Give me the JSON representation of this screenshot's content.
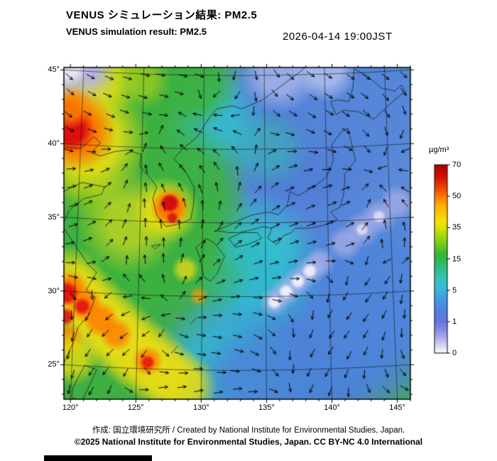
{
  "header": {
    "title_jp": "VENUS シミュレーション結果: PM2.5",
    "title_en": "VENUS simulation result: PM2.5",
    "timestamp": "2026-04-14 19:00JST"
  },
  "map": {
    "lon_labels": [
      "120°",
      "125°",
      "130°",
      "135°",
      "140°",
      "145°"
    ],
    "lat_labels": [
      "45°",
      "40°",
      "35°",
      "30°",
      "25°"
    ],
    "grid": {
      "lons": [
        120,
        125,
        130,
        135,
        140,
        145
      ],
      "lats": [
        45,
        40,
        35,
        30,
        25
      ]
    },
    "extent": {
      "lon_min": 119.5,
      "lon_max": 146,
      "lat_min": 23,
      "lat_max": 45.5
    },
    "heatmap": {
      "base_color": "#3fae43",
      "blobs": [
        [
          139.5,
          36.5,
          320,
          "#5b8ada",
          1,
          0.6
        ],
        [
          137.5,
          40,
          130,
          "#4f7ed6",
          0.9,
          0.5
        ],
        [
          142,
          43,
          120,
          "#5586d8",
          0.9,
          0.5
        ],
        [
          139,
          27.5,
          170,
          "#4b82d8",
          0.95,
          0.55
        ],
        [
          143,
          30,
          140,
          "#4f86da",
          0.9,
          0.5
        ],
        [
          133.5,
          32,
          110,
          "#2fc0cf",
          0.85,
          0.45
        ],
        [
          130.5,
          41.5,
          85,
          "#30c2cc",
          0.8,
          0.45
        ],
        [
          135,
          40,
          60,
          "#38b8b0",
          0.6,
          0.4
        ],
        [
          126.5,
          33.5,
          150,
          "#3cb23c",
          0.95,
          0.5
        ],
        [
          123.5,
          42.5,
          140,
          "#3cb23c",
          0.95,
          0.5
        ],
        [
          129.5,
          44.5,
          65,
          "#3cb23c",
          0.85,
          0.5
        ],
        [
          129,
          37.5,
          90,
          "#3cb23c",
          0.85,
          0.5
        ],
        [
          121.5,
          37.5,
          50,
          "#8cc818",
          0.6,
          0.4
        ],
        [
          131.5,
          25,
          100,
          "#34b4d4",
          0.85,
          0.5
        ],
        [
          134.5,
          24,
          90,
          "#4b86d8",
          0.9,
          0.5
        ],
        [
          122.5,
          44.8,
          55,
          "#d8dc1a",
          0.9,
          0.45
        ],
        [
          125.5,
          44.6,
          42,
          "#a0cc20",
          0.75,
          0.4
        ],
        [
          120.3,
          45.2,
          60,
          "#b4b0ea",
          0.95,
          0.5
        ],
        [
          119.8,
          45.6,
          30,
          "#eceaf8",
          0.9,
          0.5
        ],
        [
          136,
          45,
          55,
          "#a4b2e8",
          0.85,
          0.45
        ],
        [
          139.5,
          45.3,
          45,
          "#b8c2ee",
          0.8,
          0.45
        ],
        [
          121.2,
          40.6,
          90,
          "#e6de14",
          0.9,
          0.5
        ],
        [
          120.4,
          41.2,
          58,
          "#ff7100",
          0.95,
          0.5
        ],
        [
          120.1,
          41.3,
          32,
          "#dc1010",
          1,
          0.55
        ],
        [
          119.8,
          42.4,
          22,
          "#e03010",
          0.9,
          0.5
        ],
        [
          120.1,
          42.8,
          30,
          "#ff8000",
          0.8,
          0.45
        ],
        [
          124.5,
          35,
          75,
          "#d8da1e",
          0.7,
          0.4
        ],
        [
          127.3,
          35.8,
          48,
          "#e6de14",
          0.85,
          0.5
        ],
        [
          127.6,
          36,
          28,
          "#ff7100",
          0.95,
          0.5
        ],
        [
          127.6,
          36.3,
          14,
          "#d01010",
          1,
          0.6
        ],
        [
          127.8,
          35.3,
          9,
          "#d81414",
          0.9,
          0.5
        ],
        [
          119.8,
          30.8,
          55,
          "#e6dc16",
          0.85,
          0.5
        ],
        [
          121,
          29.6,
          55,
          "#e6dc16",
          0.85,
          0.5
        ],
        [
          122.2,
          28.5,
          55,
          "#e6dc16",
          0.85,
          0.5
        ],
        [
          123.4,
          27.5,
          55,
          "#e6dc16",
          0.85,
          0.5
        ],
        [
          124.6,
          26.5,
          55,
          "#e6dc16",
          0.85,
          0.5
        ],
        [
          125.9,
          25.6,
          55,
          "#e6dc16",
          0.85,
          0.5
        ],
        [
          127.2,
          24.7,
          52,
          "#e6dc16",
          0.85,
          0.5
        ],
        [
          128.5,
          23.9,
          50,
          "#e6dc16",
          0.85,
          0.5
        ],
        [
          120,
          30.4,
          28,
          "#ff7d00",
          0.9,
          0.5
        ],
        [
          121.1,
          29.4,
          26,
          "#ff7d00",
          0.9,
          0.5
        ],
        [
          122.3,
          28.4,
          26,
          "#ff7d00",
          0.85,
          0.5
        ],
        [
          123.5,
          27.4,
          24,
          "#ff7d00",
          0.8,
          0.5
        ],
        [
          125.9,
          25.6,
          22,
          "#ff7d00",
          0.8,
          0.5
        ],
        [
          119.7,
          30.2,
          18,
          "#e01212",
          0.95,
          0.55
        ],
        [
          120.9,
          29.3,
          13,
          "#e01212",
          0.9,
          0.5
        ],
        [
          119.6,
          28.6,
          14,
          "#e01212",
          0.9,
          0.5
        ],
        [
          125.9,
          25.5,
          11,
          "#e01212",
          0.85,
          0.5
        ],
        [
          119.7,
          27,
          26,
          "#ff8400",
          0.85,
          0.5
        ],
        [
          120.1,
          25.8,
          40,
          "#e6de14",
          0.8,
          0.45
        ],
        [
          128.8,
          31.8,
          20,
          "#e0da18",
          0.8,
          0.45
        ],
        [
          129.8,
          30,
          14,
          "#f0a000",
          0.7,
          0.45
        ],
        [
          133.5,
          33.2,
          45,
          "#30bec8",
          0.65,
          0.4
        ],
        [
          136,
          33.6,
          35,
          "#38c0cc",
          0.6,
          0.4
        ],
        [
          135.6,
          29.6,
          22,
          "#b0b4ec",
          0.7,
          0.45
        ],
        [
          136.5,
          30.3,
          22,
          "#b0b4ec",
          0.7,
          0.45
        ],
        [
          137.4,
          31,
          22,
          "#b0b4ec",
          0.7,
          0.45
        ],
        [
          138.3,
          31.7,
          22,
          "#b0b4ec",
          0.7,
          0.45
        ],
        [
          139.1,
          32.3,
          22,
          "#b0b4ec",
          0.7,
          0.45
        ],
        [
          135.6,
          29.6,
          11,
          "#f2f0fa",
          0.95,
          0.5
        ],
        [
          136.5,
          30.3,
          11,
          "#f2f0fa",
          0.95,
          0.5
        ],
        [
          137.4,
          31,
          11,
          "#f2f0fa",
          0.95,
          0.5
        ],
        [
          138.3,
          31.7,
          11,
          "#f2f0fa",
          0.9,
          0.5
        ],
        [
          141,
          33.6,
          26,
          "#a6ace6",
          0.75,
          0.45
        ],
        [
          142.3,
          34.5,
          26,
          "#a6ace6",
          0.75,
          0.45
        ],
        [
          143.6,
          35.4,
          26,
          "#a6ace6",
          0.75,
          0.45
        ],
        [
          145,
          36.3,
          26,
          "#a6ace6",
          0.75,
          0.45
        ],
        [
          142.3,
          34.5,
          10,
          "#e8e6f6",
          0.8,
          0.5
        ],
        [
          143.6,
          35.4,
          10,
          "#e8e6f6",
          0.8,
          0.5
        ]
      ]
    },
    "coastlines": [
      [
        [
          119.5,
          40.1
        ],
        [
          120.8,
          40
        ],
        [
          121.8,
          40.8
        ],
        [
          122.3,
          40.4
        ],
        [
          121.6,
          39.7
        ],
        [
          122.3,
          39.5
        ],
        [
          123.4,
          39.8
        ],
        [
          124.4,
          39.9
        ]
      ],
      [
        [
          124.4,
          39.9
        ],
        [
          125.4,
          39.6
        ],
        [
          125.3,
          38.8
        ],
        [
          126.2,
          37.9
        ],
        [
          126.6,
          37.4
        ],
        [
          126.3,
          36.6
        ],
        [
          126.6,
          35.5
        ],
        [
          127.3,
          34.7
        ],
        [
          128.4,
          34.9
        ],
        [
          129.2,
          35.2
        ],
        [
          129.4,
          36.1
        ],
        [
          129.5,
          37.3
        ],
        [
          128.7,
          38.6
        ],
        [
          127.9,
          39.3
        ],
        [
          128.5,
          39.9
        ],
        [
          129.7,
          40.8
        ],
        [
          130.7,
          42.2
        ]
      ],
      [
        [
          130.7,
          42.2
        ],
        [
          131.2,
          42.7
        ],
        [
          132.4,
          42.9
        ],
        [
          133.1,
          42.7
        ],
        [
          134.7,
          43.3
        ],
        [
          136.2,
          44.3
        ],
        [
          137.7,
          45.3
        ],
        [
          138.5,
          46
        ]
      ],
      [
        [
          119.5,
          37.1
        ],
        [
          120.9,
          37.7
        ],
        [
          122.6,
          37.4
        ],
        [
          122.4,
          36.9
        ],
        [
          121,
          36.6
        ],
        [
          119.9,
          35.8
        ],
        [
          119.5,
          35
        ]
      ],
      [
        [
          119.5,
          34.6
        ],
        [
          120.4,
          33.4
        ],
        [
          121.4,
          32.1
        ],
        [
          122,
          31.6
        ],
        [
          121.2,
          30.4
        ],
        [
          121.9,
          29.9
        ],
        [
          121.4,
          28.7
        ],
        [
          120.6,
          27.9
        ],
        [
          120.2,
          26.8
        ],
        [
          119.6,
          25.7
        ],
        [
          119.5,
          25.3
        ]
      ],
      [
        [
          121.1,
          25.3
        ],
        [
          122,
          25
        ],
        [
          121.5,
          24
        ],
        [
          120.9,
          22.9
        ],
        [
          120.1,
          23.1
        ],
        [
          120.2,
          23.8
        ],
        [
          121.1,
          25.3
        ]
      ],
      [
        [
          130.4,
          33.9
        ],
        [
          129.6,
          33.3
        ],
        [
          129.9,
          32.6
        ],
        [
          130.2,
          31.3
        ],
        [
          130.7,
          31
        ],
        [
          131.2,
          31.5
        ],
        [
          131.8,
          32.7
        ],
        [
          131,
          33.6
        ],
        [
          130.4,
          33.9
        ]
      ],
      [
        [
          132.1,
          33.9
        ],
        [
          132.6,
          33.3
        ],
        [
          133.6,
          33.5
        ],
        [
          134.6,
          33.9
        ],
        [
          134.3,
          34.3
        ],
        [
          133.1,
          34.3
        ],
        [
          132.1,
          33.9
        ]
      ],
      [
        [
          131,
          34.4
        ],
        [
          131.9,
          34.7
        ],
        [
          132.8,
          35.1
        ],
        [
          133.9,
          35.5
        ],
        [
          135.2,
          35.7
        ],
        [
          135.9,
          35.5
        ],
        [
          136.6,
          36.2
        ],
        [
          136.8,
          37.1
        ],
        [
          137.4,
          36.8
        ],
        [
          138.6,
          37.4
        ],
        [
          139.6,
          38.1
        ],
        [
          140.1,
          39.2
        ],
        [
          140,
          40.3
        ],
        [
          140.8,
          41.2
        ],
        [
          141.2,
          41.4
        ],
        [
          141.5,
          40.4
        ],
        [
          141.8,
          39.2
        ],
        [
          141,
          38.3
        ],
        [
          140.9,
          36.9
        ],
        [
          140.6,
          36
        ],
        [
          139.9,
          35.7
        ],
        [
          140.4,
          35.2
        ],
        [
          139.8,
          34.9
        ],
        [
          138.9,
          34.7
        ],
        [
          138.3,
          34.6
        ],
        [
          137.2,
          34.6
        ],
        [
          136.9,
          34.3
        ],
        [
          136.3,
          34.1
        ],
        [
          135.8,
          33.5
        ],
        [
          135.1,
          33.9
        ],
        [
          135.4,
          34.6
        ],
        [
          134.7,
          34.7
        ],
        [
          133.9,
          34.5
        ],
        [
          132.9,
          34.3
        ],
        [
          132.1,
          34.3
        ],
        [
          131.4,
          34.4
        ],
        [
          131,
          34.4
        ]
      ],
      [
        [
          140.3,
          42.3
        ],
        [
          139.9,
          43.2
        ],
        [
          140.5,
          43.3
        ],
        [
          141.3,
          43.2
        ],
        [
          141.6,
          44.1
        ],
        [
          141.7,
          45.4
        ],
        [
          142.6,
          45
        ],
        [
          143.8,
          44.1
        ],
        [
          144.8,
          43.9
        ],
        [
          145.3,
          44.3
        ],
        [
          145.6,
          43.9
        ],
        [
          144.4,
          43
        ],
        [
          143.2,
          42
        ],
        [
          142,
          42.5
        ],
        [
          140.9,
          42.6
        ],
        [
          140.3,
          42.3
        ]
      ],
      [
        [
          141.9,
          45.5
        ],
        [
          142.3,
          46.5
        ]
      ],
      [
        [
          126.2,
          33.4
        ],
        [
          126.9,
          33.5
        ],
        [
          126.5,
          33.2
        ],
        [
          126.2,
          33.4
        ]
      ],
      [
        [
          127.7,
          26.1
        ],
        [
          128.2,
          26.6
        ]
      ],
      [
        [
          129.2,
          28.1
        ],
        [
          129.6,
          28.5
        ]
      ]
    ],
    "wind": {
      "spacing": 26,
      "length": 13
    }
  },
  "colorbar": {
    "unit": "µg/m³",
    "tick_labels": [
      "70",
      "50",
      "35",
      "15",
      "5",
      "1",
      "0"
    ],
    "tick_values": [
      70,
      50,
      35,
      15,
      5,
      1,
      0
    ],
    "gradient": [
      {
        "p": 0.0,
        "c": "#b00000"
      },
      {
        "p": 0.06,
        "c": "#cc0f00"
      },
      {
        "p": 0.13,
        "c": "#f24a00"
      },
      {
        "p": 0.167,
        "c": "#ff7800"
      },
      {
        "p": 0.22,
        "c": "#ffb000"
      },
      {
        "p": 0.3,
        "c": "#f6e200"
      },
      {
        "p": 0.333,
        "c": "#d8e400"
      },
      {
        "p": 0.4,
        "c": "#8cd414"
      },
      {
        "p": 0.47,
        "c": "#3cb830"
      },
      {
        "p": 0.5,
        "c": "#2eb84a"
      },
      {
        "p": 0.56,
        "c": "#2cc090"
      },
      {
        "p": 0.62,
        "c": "#34c4c4"
      },
      {
        "p": 0.667,
        "c": "#3cb4dc"
      },
      {
        "p": 0.72,
        "c": "#4496e4"
      },
      {
        "p": 0.78,
        "c": "#5080e0"
      },
      {
        "p": 0.833,
        "c": "#6478de"
      },
      {
        "p": 0.88,
        "c": "#8c8ce6"
      },
      {
        "p": 0.93,
        "c": "#b8b4ee"
      },
      {
        "p": 0.97,
        "c": "#e2e0f6"
      },
      {
        "p": 1.0,
        "c": "#ffffff"
      }
    ]
  },
  "footer": {
    "credit": "作成: 国立環境研究所 / Created by National Institute for Environmental Studies, Japan.",
    "license": "©2025 National Institute for Environmental Studies, Japan. CC BY-NC 4.0 International"
  }
}
